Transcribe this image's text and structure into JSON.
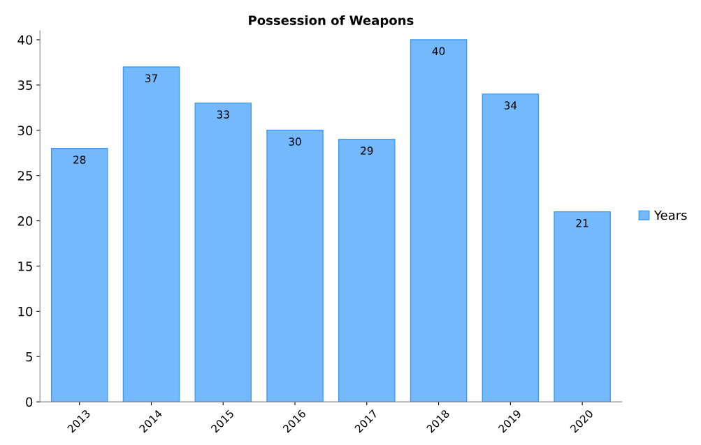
{
  "chart_data": {
    "type": "bar",
    "title": "Possession of Weapons",
    "categories": [
      "2013",
      "2014",
      "2015",
      "2016",
      "2017",
      "2018",
      "2019",
      "2020"
    ],
    "series": [
      {
        "name": "Years",
        "color": "#74b8fe",
        "values": [
          28,
          37,
          33,
          30,
          29,
          40,
          34,
          21
        ]
      }
    ],
    "ylim": [
      0,
      41
    ],
    "yticks": [
      0,
      5,
      10,
      15,
      20,
      25,
      30,
      35,
      40
    ],
    "grid": false,
    "legend": "right",
    "data_labels": true
  }
}
